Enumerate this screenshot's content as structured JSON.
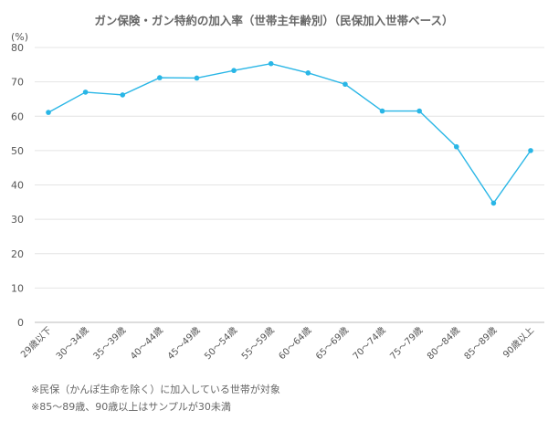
{
  "chart_data": {
    "type": "line",
    "title": "ガン保険・ガン特約の加入率（世帯主年齢別）（民保加入世帯ベース）",
    "ylabel": "(%)",
    "xlabel": "",
    "ylim": [
      0,
      80
    ],
    "yticks": [
      0,
      10,
      20,
      30,
      40,
      50,
      60,
      70,
      80
    ],
    "grid": true,
    "categories": [
      "29歳以下",
      "30～34歳",
      "35～39歳",
      "40～44歳",
      "45～49歳",
      "50～54歳",
      "55～59歳",
      "60～64歳",
      "65～69歳",
      "70～74歳",
      "75～79歳",
      "80～84歳",
      "85～89歳",
      "90歳以上"
    ],
    "series": [
      {
        "name": "加入率",
        "values": [
          61.1,
          67.0,
          66.2,
          71.2,
          71.1,
          73.3,
          75.3,
          72.6,
          69.3,
          61.5,
          61.5,
          51.1,
          34.7,
          50.0
        ]
      }
    ],
    "colors": {
      "line": "#29b6e6",
      "marker": "#29b6e6",
      "grid": "#e4e4e4",
      "axis": "#bbbbbb"
    }
  },
  "notes": [
    "※民保（かんぽ生命を除く）に加入している世帯が対象",
    "※85～89歳、90歳以上はサンプルが30未満"
  ]
}
